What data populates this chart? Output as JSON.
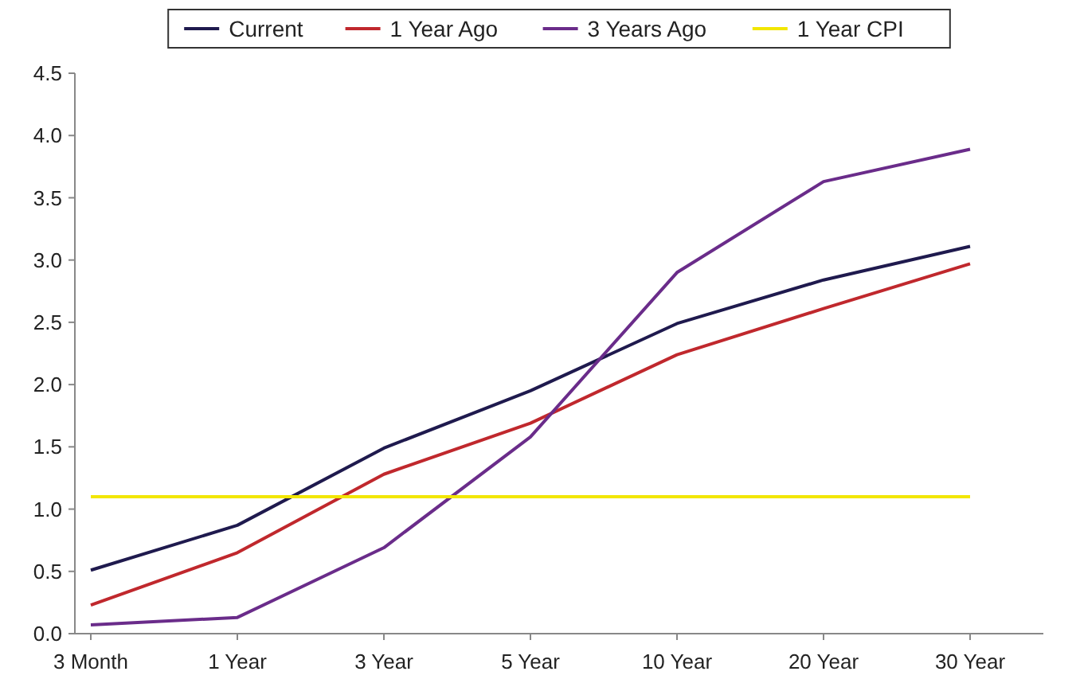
{
  "chart_data": {
    "type": "line",
    "categories": [
      "3 Month",
      "1 Year",
      "3 Year",
      "5 Year",
      "10 Year",
      "20 Year",
      "30 Year"
    ],
    "series": [
      {
        "name": "Current",
        "color": "#1f1a4e",
        "values": [
          0.51,
          0.87,
          1.49,
          1.95,
          2.49,
          2.84,
          3.11
        ]
      },
      {
        "name": "1 Year Ago",
        "color": "#c0282d",
        "values": [
          0.23,
          0.65,
          1.28,
          1.69,
          2.24,
          2.61,
          2.97
        ]
      },
      {
        "name": "3 Years Ago",
        "color": "#6a2c8a",
        "values": [
          0.07,
          0.13,
          0.69,
          1.58,
          2.9,
          3.63,
          3.89
        ]
      },
      {
        "name": "1 Year CPI",
        "color": "#f2e600",
        "values": [
          1.1,
          1.1,
          1.1,
          1.1,
          1.1,
          1.1,
          1.1
        ]
      }
    ],
    "ylim": [
      0,
      4.5
    ],
    "yticks": [
      {
        "value": 0,
        "label": "0.0"
      },
      {
        "value": 0.5,
        "label": "0.5"
      },
      {
        "value": 1,
        "label": "1.0"
      },
      {
        "value": 1.5,
        "label": "1.5"
      },
      {
        "value": 2,
        "label": "2.0"
      },
      {
        "value": 2.5,
        "label": "2.5"
      },
      {
        "value": 3,
        "label": "3.0"
      },
      {
        "value": 3.5,
        "label": "3.5"
      },
      {
        "value": 4,
        "label": "4.0"
      },
      {
        "value": 4.5,
        "label": "4.5"
      }
    ],
    "grid": false,
    "legend": "top",
    "marker": "none",
    "line_style": "solid"
  }
}
